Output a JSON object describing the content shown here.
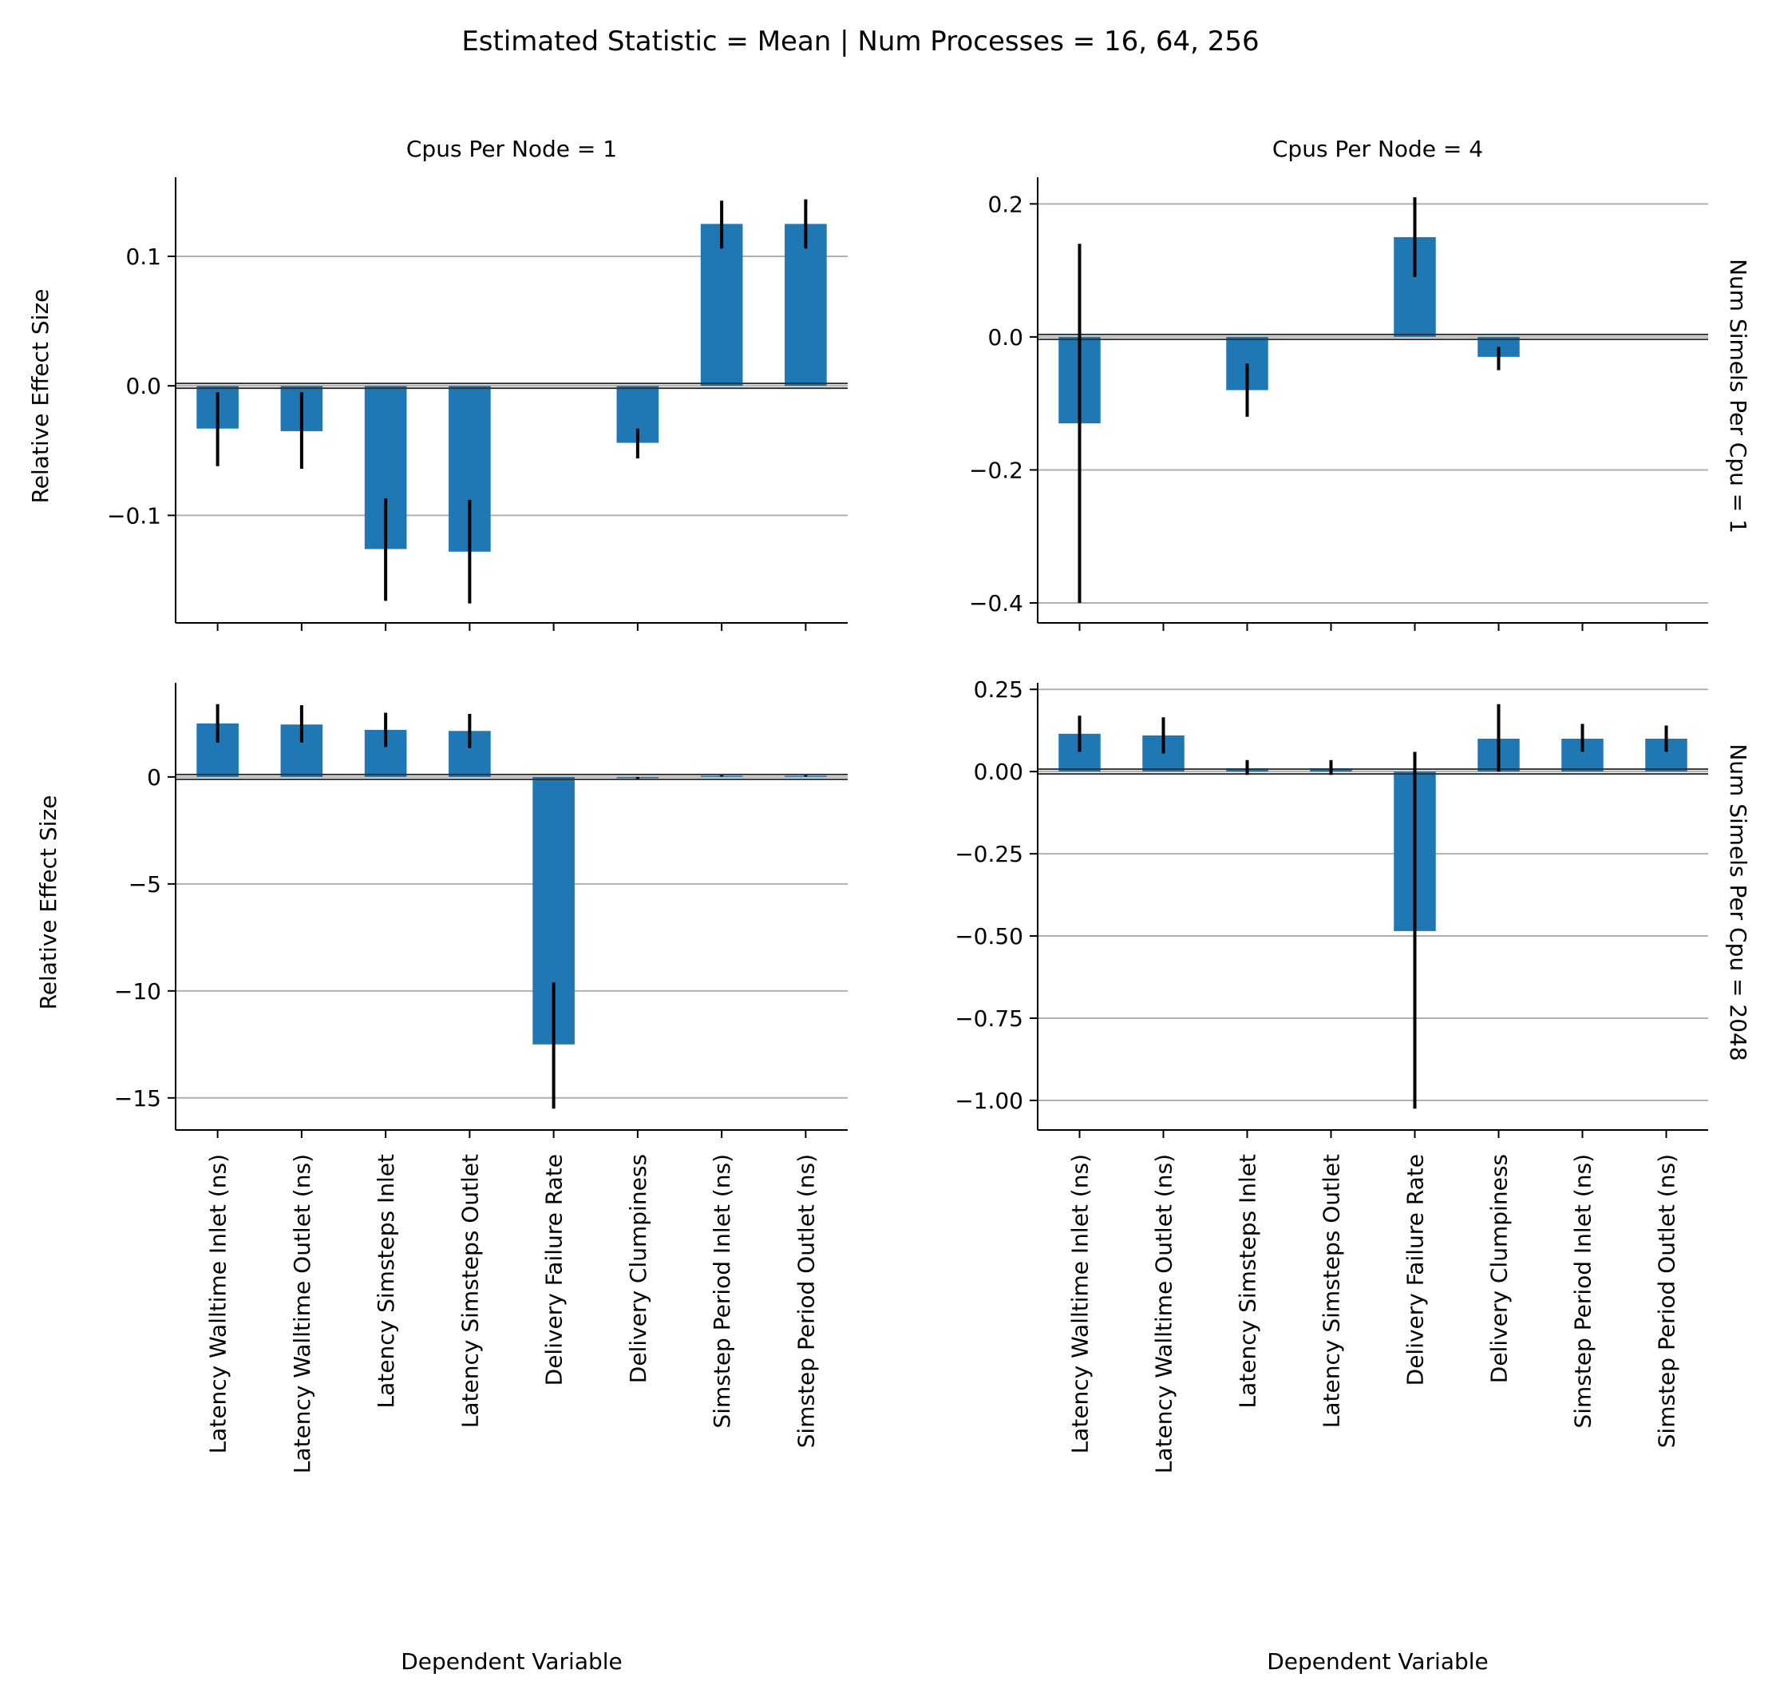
{
  "suptitle": "Estimated Statistic = Mean | Num Processes = 16, 64, 256",
  "col_titles": [
    "Cpus Per Node = 1",
    "Cpus Per Node = 4"
  ],
  "row_titles": [
    "Num Simels Per Cpu = 1",
    "Num Simels Per Cpu = 2048"
  ],
  "ylabel": "Relative Effect Size",
  "xlabel": "Dependent Variable",
  "bar_color": "#1f77b4",
  "categories": [
    "Latency Walltime Inlet (ns)",
    "Latency Walltime Outlet (ns)",
    "Latency Simsteps Inlet",
    "Latency Simsteps Outlet",
    "Delivery Failure Rate",
    "Delivery Clumpiness",
    "Simstep Period Inlet (ns)",
    "Simstep Period Outlet (ns)"
  ],
  "chart_data": [
    {
      "type": "bar",
      "title": "Cpus Per Node = 1",
      "row_title": "",
      "ylim": [
        -0.183,
        0.161
      ],
      "yticks": [
        -0.1,
        0.0,
        0.1
      ],
      "ytick_labels": [
        "−0.1",
        "0.0",
        "0.1"
      ],
      "grid": "y",
      "values": [
        -0.033,
        -0.035,
        -0.126,
        -0.128,
        null,
        -0.044,
        0.125,
        0.125
      ],
      "err_low": [
        -0.062,
        -0.064,
        -0.166,
        -0.168,
        null,
        -0.056,
        0.106,
        0.106
      ],
      "err_high": [
        -0.005,
        -0.005,
        -0.087,
        -0.088,
        null,
        -0.033,
        0.143,
        0.144
      ]
    },
    {
      "type": "bar",
      "title": "Cpus Per Node = 4",
      "row_title": "Num Simels Per Cpu = 1",
      "ylim": [
        -0.43,
        0.24
      ],
      "yticks": [
        -0.4,
        -0.2,
        0.0,
        0.2
      ],
      "ytick_labels": [
        "−0.4",
        "−0.2",
        "0.0",
        "0.2"
      ],
      "grid": "y",
      "values": [
        -0.13,
        null,
        -0.08,
        null,
        0.15,
        -0.03,
        null,
        null
      ],
      "err_low": [
        -0.4,
        null,
        -0.12,
        null,
        0.09,
        -0.05,
        null,
        null
      ],
      "err_high": [
        0.14,
        null,
        -0.04,
        null,
        0.21,
        -0.015,
        null,
        null
      ]
    },
    {
      "type": "bar",
      "title": "",
      "row_title": "",
      "ylim": [
        -16.5,
        4.4
      ],
      "yticks": [
        -15,
        -10,
        -5,
        0
      ],
      "ytick_labels": [
        "−15",
        "−10",
        "−5",
        "0"
      ],
      "grid": "y",
      "values": [
        2.5,
        2.45,
        2.2,
        2.15,
        -12.5,
        -0.05,
        0.05,
        0.05
      ],
      "err_low": [
        1.6,
        1.6,
        1.4,
        1.35,
        -15.5,
        -0.1,
        0.02,
        0.02
      ],
      "err_high": [
        3.4,
        3.35,
        3.0,
        2.95,
        -9.6,
        0.0,
        0.08,
        0.08
      ]
    },
    {
      "type": "bar",
      "title": "",
      "row_title": "Num Simels Per Cpu = 2048",
      "ylim": [
        -1.09,
        0.27
      ],
      "yticks": [
        -1.0,
        -0.75,
        -0.5,
        -0.25,
        0.0,
        0.25
      ],
      "ytick_labels": [
        "−1.00",
        "−0.75",
        "−0.50",
        "−0.25",
        "0.00",
        "0.25"
      ],
      "grid": "y",
      "values": [
        0.115,
        0.11,
        0.01,
        0.01,
        -0.485,
        0.1,
        0.1,
        0.1
      ],
      "err_low": [
        0.06,
        0.055,
        -0.01,
        -0.01,
        -1.025,
        0.0,
        0.06,
        0.06
      ],
      "err_high": [
        0.17,
        0.165,
        0.035,
        0.035,
        0.06,
        0.205,
        0.145,
        0.14
      ]
    }
  ]
}
